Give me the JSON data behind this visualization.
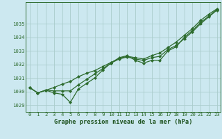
{
  "title": "Graphe pression niveau de la mer (hPa)",
  "bg_color": "#cce8f0",
  "grid_color": "#aacccc",
  "line_color": "#2d6b2d",
  "xlabel_color": "#1a4f1a",
  "hours": [
    0,
    1,
    2,
    3,
    4,
    5,
    6,
    7,
    8,
    9,
    10,
    11,
    12,
    13,
    14,
    15,
    16,
    17,
    18,
    19,
    20,
    21,
    22,
    23
  ],
  "series1": [
    1030.3,
    1029.9,
    1030.1,
    1029.9,
    1029.8,
    1029.2,
    1030.2,
    1030.6,
    1031.0,
    1031.6,
    1032.1,
    1032.5,
    1032.65,
    1032.3,
    1032.1,
    1032.3,
    1032.3,
    1033.0,
    1033.3,
    1034.0,
    1034.5,
    1035.1,
    1035.55,
    1036.05
  ],
  "series2": [
    1030.3,
    1029.9,
    1030.1,
    1030.05,
    1030.05,
    1030.05,
    1030.5,
    1030.9,
    1031.3,
    1031.7,
    1032.1,
    1032.4,
    1032.55,
    1032.4,
    1032.3,
    1032.5,
    1032.6,
    1033.1,
    1033.4,
    1033.9,
    1034.4,
    1035.0,
    1035.5,
    1036.0
  ],
  "series3": [
    1030.3,
    1029.9,
    1030.1,
    1030.3,
    1030.55,
    1030.75,
    1031.1,
    1031.35,
    1031.55,
    1031.85,
    1032.15,
    1032.45,
    1032.6,
    1032.5,
    1032.4,
    1032.65,
    1032.85,
    1033.25,
    1033.65,
    1034.15,
    1034.65,
    1035.25,
    1035.7,
    1036.1
  ],
  "ylim_min": 1028.5,
  "ylim_max": 1036.6,
  "yticks": [
    1029,
    1030,
    1031,
    1032,
    1033,
    1034,
    1035
  ],
  "xlim_min": -0.5,
  "xlim_max": 23.5,
  "marker": "D",
  "markersize": 2.0,
  "linewidth": 0.9,
  "tick_fontsize": 5.2,
  "label_fontsize": 6.2
}
